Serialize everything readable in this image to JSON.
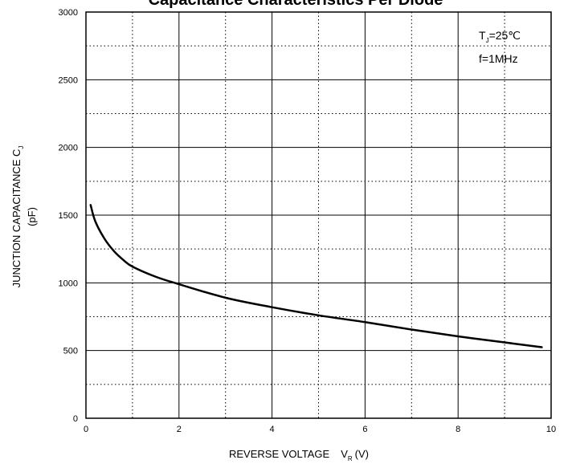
{
  "chart_data": {
    "type": "line",
    "title": "Capacitance Characteristics Per Diode",
    "xlabel": {
      "main": "REVERSE VOLTAGE",
      "symbol": "V",
      "subscript": "R",
      "unit": "(V)"
    },
    "ylabel": {
      "line1_main": "JUNCTION CAPACITANCE C",
      "line1_subscript": "J",
      "line2": "(pF)"
    },
    "xlim": [
      0,
      10
    ],
    "ylim": [
      0,
      3000
    ],
    "x_ticks": [
      0,
      2,
      4,
      6,
      8,
      10
    ],
    "y_ticks": [
      0,
      500,
      1000,
      1500,
      2000,
      2500,
      3000
    ],
    "x_tick_labels": [
      "0",
      "2",
      "4",
      "6",
      "8",
      "10"
    ],
    "y_tick_labels": [
      "0",
      "500",
      "1000",
      "1500",
      "2000",
      "2500",
      "3000"
    ],
    "grid": true,
    "annotation": {
      "line1_main": "T",
      "line1_subscript": "J",
      "line1_rest": "=25℃",
      "line2": "f=1MHz"
    },
    "series": [
      {
        "x": [
          0.1,
          0.2,
          0.4,
          0.6,
          0.8,
          1.0,
          1.5,
          2.0,
          3.0,
          4.0,
          5.0,
          6.0,
          7.0,
          8.0,
          9.0,
          9.8
        ],
        "values": [
          1575,
          1455,
          1325,
          1235,
          1170,
          1120,
          1045,
          990,
          890,
          820,
          760,
          710,
          655,
          605,
          560,
          525
        ]
      }
    ]
  }
}
